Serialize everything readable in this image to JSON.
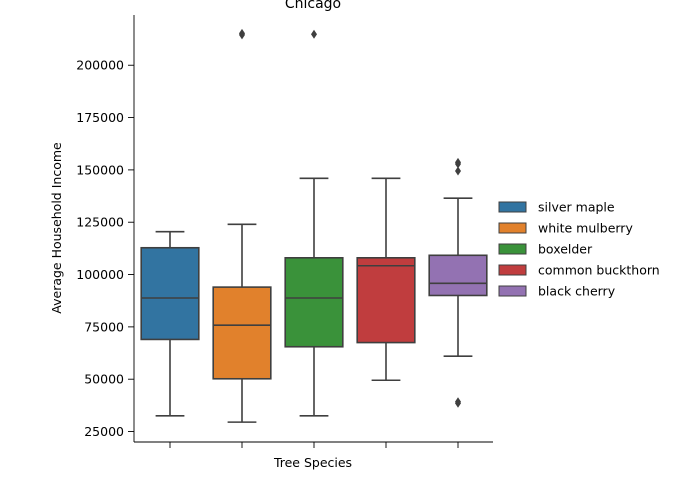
{
  "chart_data": {
    "type": "box",
    "title": "Chicago",
    "xlabel": "Tree Species",
    "ylabel": "Average Household Income",
    "ylim": [
      20000,
      224000
    ],
    "yticks": [
      25000,
      50000,
      75000,
      100000,
      125000,
      150000,
      175000,
      200000
    ],
    "ytick_labels": [
      "25000",
      "50000",
      "75000",
      "100000",
      "125000",
      "150000",
      "175000",
      "200000"
    ],
    "grid": false,
    "legend_position": "right",
    "series": [
      {
        "name": "silver maple",
        "color": "#1f77b4",
        "fill": "#3274a1",
        "whisker_low": 32500,
        "q1": 69000,
        "median": 88800,
        "q3": 112800,
        "whisker_high": 120500,
        "outliers": []
      },
      {
        "name": "white mulberry",
        "color": "#ff7f0e",
        "fill": "#e1812c",
        "whisker_low": 29500,
        "q1": 50200,
        "median": 75800,
        "q3": 94000,
        "whisker_high": 124000,
        "outliers": [
          214500,
          215200
        ]
      },
      {
        "name": "boxelder",
        "color": "#2ca02c",
        "fill": "#3a923a",
        "whisker_low": 32500,
        "q1": 65500,
        "median": 88800,
        "q3": 108000,
        "whisker_high": 146000,
        "outliers": [
          214800
        ]
      },
      {
        "name": "common buckthorn",
        "color": "#d62728",
        "fill": "#c03d3e",
        "whisker_low": 49500,
        "q1": 67500,
        "median": 104200,
        "q3": 108000,
        "whisker_high": 146000,
        "outliers": []
      },
      {
        "name": "black cherry",
        "color": "#9467bd",
        "fill": "#9372b2",
        "whisker_low": 61000,
        "q1": 90000,
        "median": 95800,
        "q3": 109200,
        "whisker_high": 136500,
        "outliers": [
          38500,
          39200,
          149500,
          152800,
          153600
        ]
      }
    ]
  }
}
